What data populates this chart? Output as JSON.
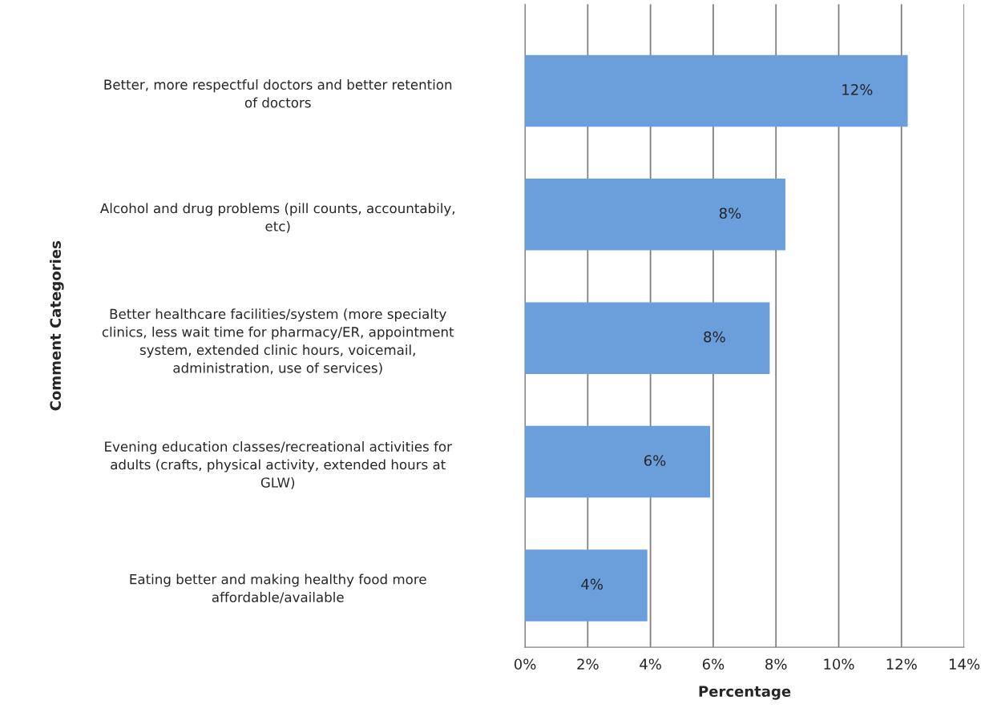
{
  "chart_data": {
    "type": "bar",
    "orientation": "horizontal",
    "xlabel": "Percentage",
    "ylabel": "Comment Categories",
    "categories": [
      "Better, more respectful doctors and better retention\nof doctors",
      "Alcohol and drug problems (pill counts, accountabily,\netc)",
      "Better healthcare facilities/system (more specialty\nclinics, less wait time for pharmacy/ER, appointment\nsystem, extended clinic hours, voicemail,\nadministration, use of services)",
      "Evening education classes/recreational activities for\nadults (crafts, physical activity, extended hours at\nGLW)",
      "Eating better and making healthy food more\naffordable/available"
    ],
    "values": [
      12.2,
      8.3,
      7.8,
      5.9,
      3.9
    ],
    "value_labels": [
      "12%",
      "8%",
      "8%",
      "6%",
      "4%"
    ],
    "color": "#6a9fdc",
    "xlim": [
      0,
      14
    ],
    "xticks": [
      {
        "value": 0,
        "label": "0%"
      },
      {
        "value": 2,
        "label": "2%"
      },
      {
        "value": 4,
        "label": "4%"
      },
      {
        "value": 6,
        "label": "6%"
      },
      {
        "value": 8,
        "label": "8%"
      },
      {
        "value": 10,
        "label": "10%"
      },
      {
        "value": 12,
        "label": "12%"
      },
      {
        "value": 14,
        "label": "14%"
      }
    ],
    "grid": "x"
  }
}
